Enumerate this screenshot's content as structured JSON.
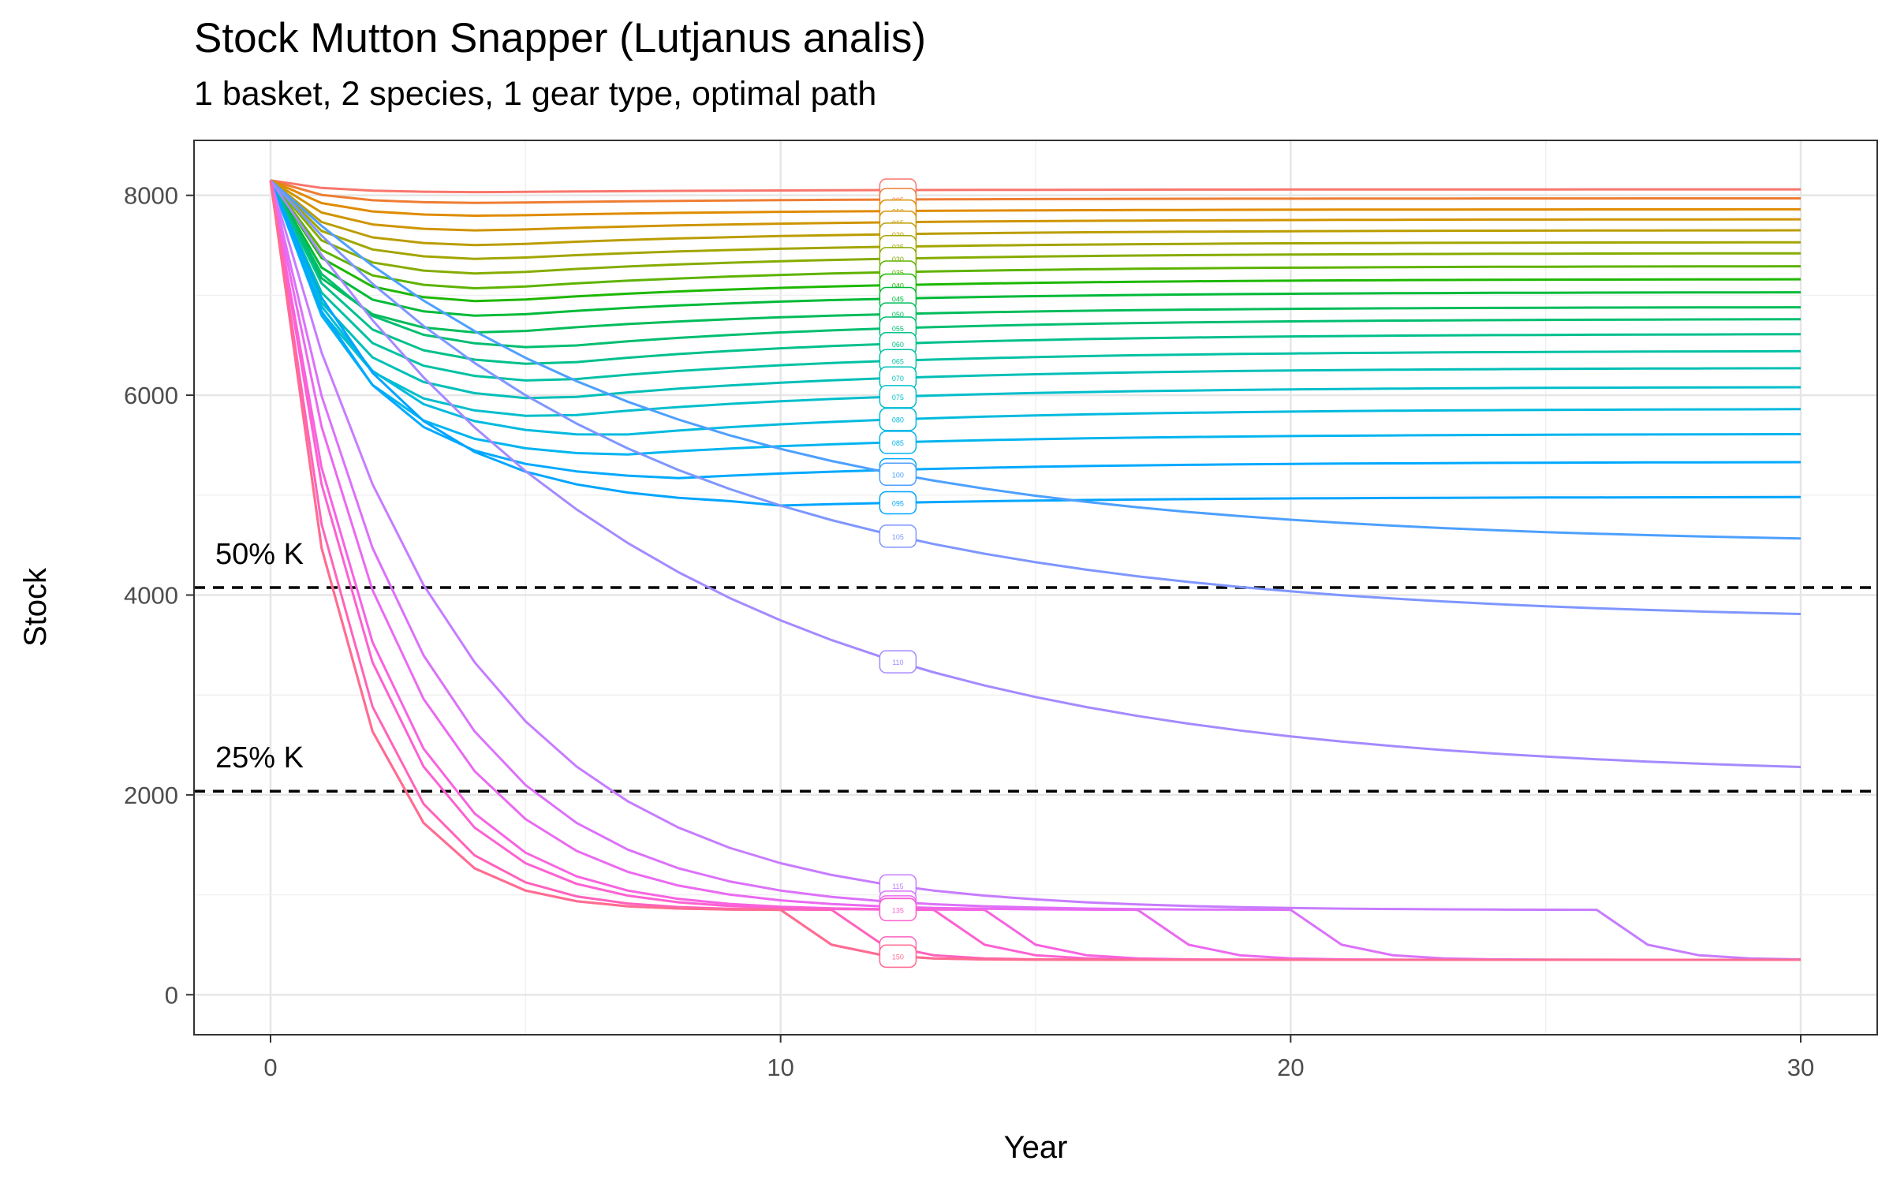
{
  "chart_data": {
    "type": "line",
    "title": "Stock Mutton Snapper (Lutjanus analis)",
    "subtitle": "1 basket, 2 species, 1 gear type, optimal path",
    "xlabel": "Year",
    "ylabel": "Stock",
    "xlim": [
      -1.5,
      31.5
    ],
    "ylim": [
      -400,
      8550
    ],
    "x_ticks": [
      0,
      10,
      20,
      30
    ],
    "y_ticks": [
      0,
      2000,
      4000,
      6000,
      8000
    ],
    "grid": true,
    "initial_stock": 8150,
    "reference_lines": [
      {
        "label": "50% K",
        "value": 4075
      },
      {
        "label": "25% K",
        "value": 2037
      }
    ],
    "label_year": 12.3,
    "series": [
      {
        "name": "000",
        "color": "#F8766D",
        "min": 8030,
        "tmin": 4,
        "final": 8060
      },
      {
        "name": "005",
        "color": "#EE7D33",
        "min": 7920,
        "tmin": 4,
        "final": 7970
      },
      {
        "name": "010",
        "color": "#E08B00",
        "min": 7790,
        "tmin": 4,
        "final": 7860
      },
      {
        "name": "015",
        "color": "#CF9400",
        "min": 7640,
        "tmin": 4,
        "final": 7760
      },
      {
        "name": "020",
        "color": "#BB9D00",
        "min": 7490,
        "tmin": 4,
        "final": 7650
      },
      {
        "name": "025",
        "color": "#A3A500",
        "min": 7350,
        "tmin": 4,
        "final": 7530
      },
      {
        "name": "030",
        "color": "#87AC00",
        "min": 7200,
        "tmin": 4,
        "final": 7420
      },
      {
        "name": "035",
        "color": "#5EB300",
        "min": 7050,
        "tmin": 4,
        "final": 7290
      },
      {
        "name": "040",
        "color": "#1DB800",
        "min": 6920,
        "tmin": 4,
        "final": 7160
      },
      {
        "name": "045",
        "color": "#00BA38",
        "min": 6770,
        "tmin": 4,
        "final": 7030
      },
      {
        "name": "050",
        "color": "#00BC59",
        "min": 6600,
        "tmin": 4,
        "final": 6880
      },
      {
        "name": "055",
        "color": "#00BE70",
        "min": 6450,
        "tmin": 5,
        "final": 6760
      },
      {
        "name": "060",
        "color": "#00C08B",
        "min": 6280,
        "tmin": 5,
        "final": 6610
      },
      {
        "name": "065",
        "color": "#00C1A3",
        "min": 6110,
        "tmin": 5,
        "final": 6440
      },
      {
        "name": "070",
        "color": "#00BFB7",
        "min": 5930,
        "tmin": 5,
        "final": 6270
      },
      {
        "name": "075",
        "color": "#00BECB",
        "min": 5750,
        "tmin": 5,
        "final": 6080
      },
      {
        "name": "080",
        "color": "#00BADE",
        "min": 5560,
        "tmin": 6,
        "final": 5860
      },
      {
        "name": "085",
        "color": "#00B4EF",
        "min": 5370,
        "tmin": 6,
        "final": 5610
      },
      {
        "name": "090",
        "color": "#00A9FF",
        "min": 5140,
        "tmin": 7,
        "final": 5330
      },
      {
        "name": "095",
        "color": "#00A5FF",
        "min": 4880,
        "tmin": 9,
        "final": 4980
      },
      {
        "name": "100",
        "color": "#4DA0FF",
        "min": 4500,
        "tmin": 30,
        "final": 4500
      },
      {
        "name": "105",
        "color": "#7F96FF",
        "min": 3730,
        "tmin": 30,
        "final": 3730
      },
      {
        "name": "110",
        "color": "#A58AFF",
        "min": 2170,
        "tmin": 30,
        "final": 2170
      },
      {
        "name": "115",
        "color": "#C77CFF",
        "collapse": 26
      },
      {
        "name": "120",
        "color": "#DC71FA",
        "collapse": 20
      },
      {
        "name": "125",
        "color": "#EB69F0",
        "collapse": 17
      },
      {
        "name": "130",
        "color": "#F763E0",
        "collapse": 14
      },
      {
        "name": "135",
        "color": "#FD61D1",
        "collapse": 13
      },
      {
        "name": "140",
        "color": "#FF62BC",
        "collapse": 11
      },
      {
        "name": "145",
        "color": "#FF65AE",
        "collapse": 10
      },
      {
        "name": "150",
        "color": "#FF6C91",
        "collapse": 10
      }
    ]
  }
}
